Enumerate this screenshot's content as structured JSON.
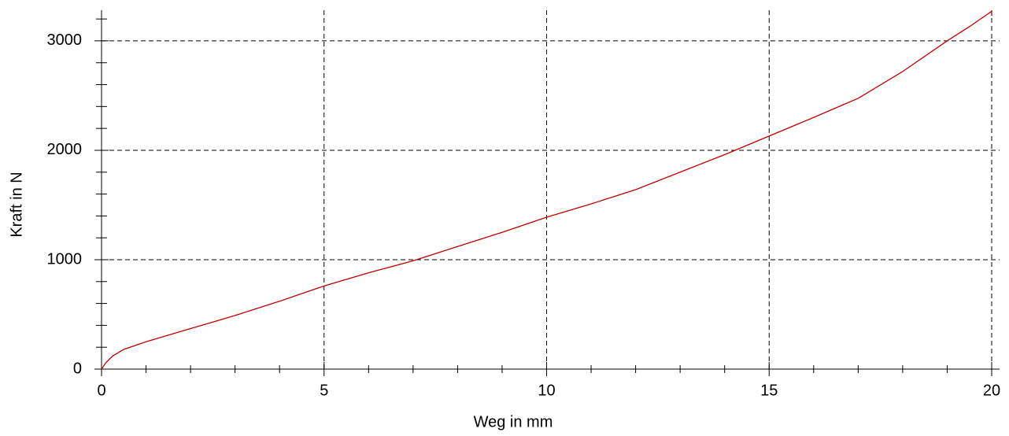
{
  "chart_data": {
    "type": "line",
    "xlabel": "Weg in mm",
    "ylabel": "Kraft in N",
    "series": [
      {
        "color": "#c00000",
        "x": [
          0,
          0.1,
          0.25,
          0.5,
          1,
          1.5,
          2,
          3,
          4,
          5,
          6,
          7,
          8,
          9,
          10,
          11,
          12,
          13,
          14,
          15,
          16,
          17,
          18,
          19,
          19.5,
          20,
          20
        ],
        "values": [
          0,
          60,
          120,
          180,
          250,
          310,
          370,
          490,
          620,
          760,
          880,
          990,
          1120,
          1250,
          1388,
          1510,
          1640,
          1800,
          1960,
          2130,
          2300,
          2475,
          2720,
          3000,
          3130,
          3270,
          3230
        ]
      }
    ],
    "xlim": [
      0,
      20
    ],
    "xticks": [
      0,
      5,
      10,
      15,
      20
    ],
    "x_minor_ticks": [
      1,
      2,
      3,
      4,
      6,
      7,
      8,
      9,
      11,
      12,
      13,
      14,
      16,
      17,
      18,
      19
    ],
    "ylim": [
      0,
      3280
    ],
    "yticks": [
      0,
      1000,
      2000,
      3000
    ],
    "y_minor_ticks": [
      200,
      400,
      600,
      800,
      1200,
      1400,
      1600,
      1800,
      2200,
      2400,
      2600,
      2800,
      3200
    ],
    "grid": true
  }
}
